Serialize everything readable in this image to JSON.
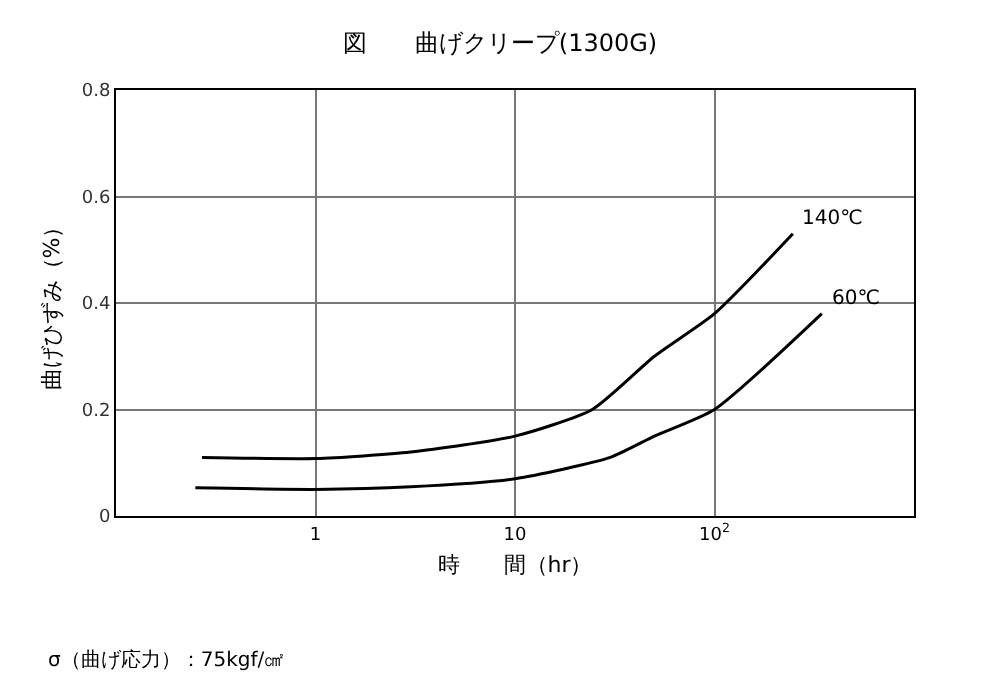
{
  "chart_data": {
    "type": "line",
    "title": "図　　曲げクリープ(1300G)",
    "xlabel": "時　　間（hr）",
    "ylabel": "曲げひずみ（%）",
    "log": "x",
    "xlim": [
      0.1,
      1000
    ],
    "xticks": [
      1,
      10,
      {
        "value": 100,
        "label": "10$^{2}$"
      }
    ],
    "ylim": [
      0,
      0.8
    ],
    "yticks": [
      0,
      0.2,
      0.4,
      0.6,
      0.8
    ],
    "grid": true,
    "legend": false,
    "marker": "none",
    "line_style": "solid",
    "series": [
      {
        "name": "140℃",
        "color": "#000000",
        "x": [
          0.27,
          1,
          3,
          10,
          24.4,
          50,
          100,
          247
        ],
        "values": [
          0.11,
          0.108,
          0.12,
          0.15,
          0.2,
          0.3,
          0.38,
          0.53
        ]
      },
      {
        "name": "60℃",
        "color": "#000000",
        "x": [
          0.25,
          1,
          3,
          10,
          30,
          50,
          100,
          345
        ],
        "values": [
          0.053,
          0.05,
          0.055,
          0.07,
          0.11,
          0.15,
          0.2,
          0.38
        ]
      }
    ],
    "annotations": [
      "σ（曲げ応力）：75kgf/㎠"
    ]
  }
}
